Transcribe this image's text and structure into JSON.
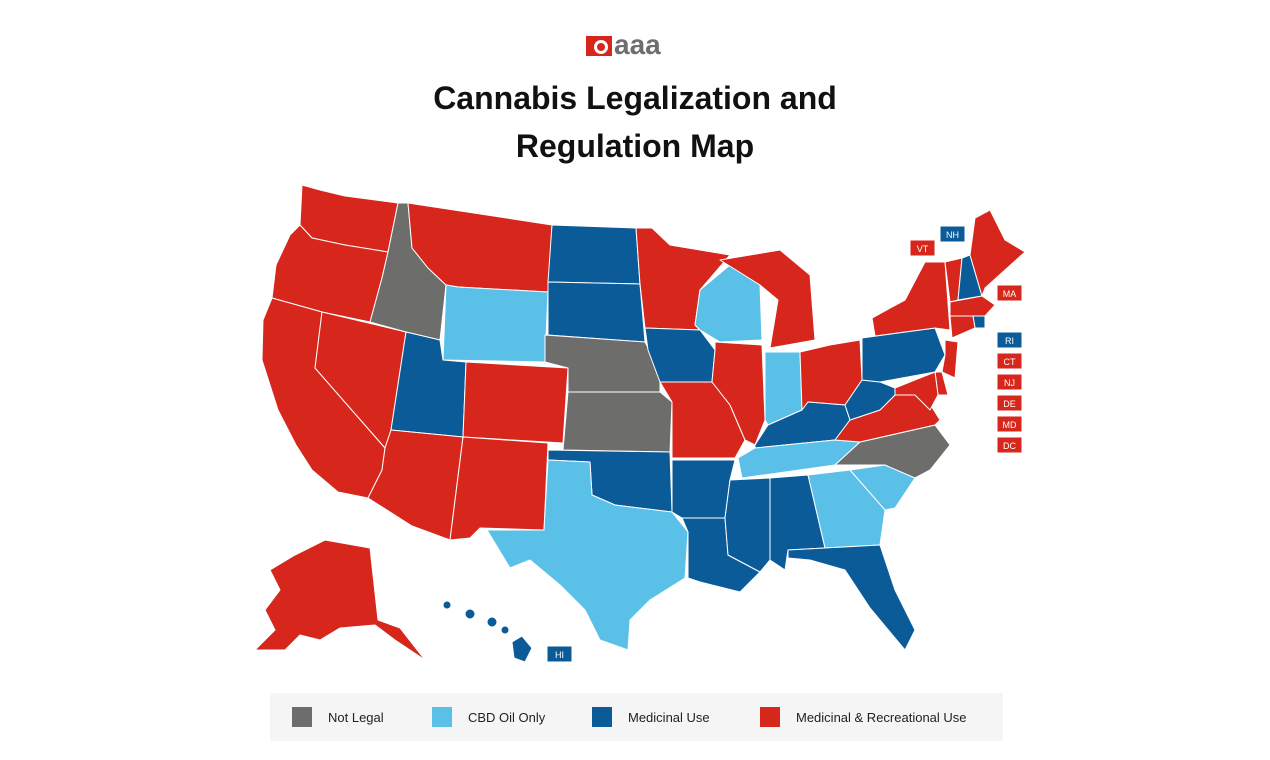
{
  "logo": {
    "text": "aaa"
  },
  "title": {
    "line1": "Cannabis Legalization and",
    "line2": "Regulation Map"
  },
  "colors": {
    "not_legal": "#6d6e6c",
    "cbd_oil_only": "#5bc0e8",
    "medicinal_use": "#0b5b98",
    "medicinal_recreational": "#d7261c"
  },
  "legend": [
    {
      "key": "not_legal",
      "label": "Not Legal"
    },
    {
      "key": "cbd_oil_only",
      "label": "CBD Oil Only"
    },
    {
      "key": "medicinal_use",
      "label": "Medicinal Use"
    },
    {
      "key": "medicinal_recreational",
      "label": "Medicinal & Recreational Use"
    }
  ],
  "state_categories": {
    "WA": "medicinal_recreational",
    "OR": "medicinal_recreational",
    "CA": "medicinal_recreational",
    "NV": "medicinal_recreational",
    "ID": "not_legal",
    "MT": "medicinal_recreational",
    "WY": "cbd_oil_only",
    "UT": "medicinal_use",
    "AZ": "medicinal_recreational",
    "CO": "medicinal_recreational",
    "NM": "medicinal_recreational",
    "ND": "medicinal_use",
    "SD": "medicinal_use",
    "NE": "not_legal",
    "KS": "not_legal",
    "OK": "medicinal_use",
    "TX": "cbd_oil_only",
    "MN": "medicinal_recreational",
    "IA": "medicinal_use",
    "MO": "medicinal_recreational",
    "AR": "medicinal_use",
    "LA": "medicinal_use",
    "WI": "cbd_oil_only",
    "IL": "medicinal_recreational",
    "MI": "medicinal_recreational",
    "IN": "cbd_oil_only",
    "OH": "medicinal_recreational",
    "KY": "medicinal_use",
    "TN": "cbd_oil_only",
    "MS": "medicinal_use",
    "AL": "medicinal_use",
    "GA": "cbd_oil_only",
    "FL": "medicinal_use",
    "SC": "cbd_oil_only",
    "NC": "not_legal",
    "VA": "medicinal_recreational",
    "WV": "medicinal_use",
    "PA": "medicinal_use",
    "NY": "medicinal_recreational",
    "VT": "medicinal_recreational",
    "NH": "medicinal_use",
    "ME": "medicinal_recreational",
    "MA": "medicinal_recreational",
    "RI": "medicinal_use",
    "CT": "medicinal_recreational",
    "NJ": "medicinal_recreational",
    "DE": "medicinal_recreational",
    "MD": "medicinal_recreational",
    "DC": "medicinal_recreational",
    "AK": "medicinal_recreational",
    "HI": "medicinal_use"
  },
  "state_tags": [
    {
      "label": "VT",
      "key": "medicinal_recreational"
    },
    {
      "label": "NH",
      "key": "medicinal_use"
    },
    {
      "label": "MA",
      "key": "medicinal_recreational"
    },
    {
      "label": "RI",
      "key": "medicinal_use"
    },
    {
      "label": "CT",
      "key": "medicinal_recreational"
    },
    {
      "label": "NJ",
      "key": "medicinal_recreational"
    },
    {
      "label": "DE",
      "key": "medicinal_recreational"
    },
    {
      "label": "MD",
      "key": "medicinal_recreational"
    },
    {
      "label": "DC",
      "key": "medicinal_recreational"
    },
    {
      "label": "HI",
      "key": "medicinal_use"
    }
  ]
}
